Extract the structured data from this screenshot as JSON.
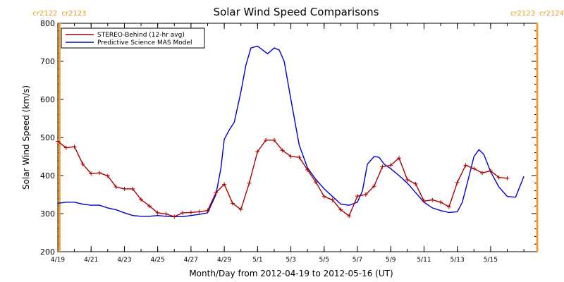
{
  "chart_data": {
    "type": "line",
    "title": "Solar Wind Speed Comparisons",
    "xlabel": "Month/Day from 2012-04-19 to 2012-05-16 (UT)",
    "ylabel": "Solar Wind Speed (km/s)",
    "x_range_days": [
      0,
      28.8
    ],
    "ylim": [
      200,
      800
    ],
    "yticks": [
      200,
      300,
      400,
      500,
      600,
      700,
      800
    ],
    "xtick_labels": [
      {
        "day": 0,
        "label": "4/19"
      },
      {
        "day": 2,
        "label": "4/21"
      },
      {
        "day": 4,
        "label": "4/23"
      },
      {
        "day": 6,
        "label": "4/25"
      },
      {
        "day": 8,
        "label": "4/27"
      },
      {
        "day": 10,
        "label": "4/29"
      },
      {
        "day": 12,
        "label": "5/1"
      },
      {
        "day": 14,
        "label": "5/3"
      },
      {
        "day": 16,
        "label": "5/5"
      },
      {
        "day": 18,
        "label": "5/7"
      },
      {
        "day": 20,
        "label": "5/9"
      },
      {
        "day": 22,
        "label": "5/11"
      },
      {
        "day": 24,
        "label": "5/13"
      },
      {
        "day": 26,
        "label": "5/15"
      }
    ],
    "rotation_markers": [
      {
        "day": 0.1,
        "left_label": "cr2122",
        "right_label": "cr2123"
      },
      {
        "day": 28.8,
        "left_label": "cr2123",
        "right_label": "cr2124"
      }
    ],
    "legend_position": "top-left",
    "series": [
      {
        "name": "STEREO-Behind (12-hr avg)",
        "color": "#aa0000",
        "marker": "plus",
        "x": [
          0.0,
          0.5,
          1.0,
          1.5,
          2.0,
          2.5,
          3.0,
          3.5,
          4.0,
          4.5,
          5.0,
          5.5,
          6.0,
          6.5,
          7.0,
          7.5,
          8.0,
          8.5,
          9.0,
          9.5,
          10.0,
          10.5,
          11.0,
          11.5,
          12.0,
          12.5,
          13.0,
          13.5,
          14.0,
          14.5,
          15.0,
          15.5,
          16.0,
          16.5,
          17.0,
          17.5,
          18.0,
          18.5,
          19.0,
          19.5,
          20.0,
          20.5,
          21.0,
          21.5,
          22.0,
          22.5,
          23.0,
          23.5,
          24.0,
          24.5,
          25.0,
          25.5,
          26.0,
          26.5,
          27.0
        ],
        "values": [
          490,
          473,
          476,
          430,
          405,
          407,
          399,
          370,
          365,
          365,
          337,
          320,
          302,
          299,
          292,
          302,
          303,
          305,
          308,
          355,
          377,
          327,
          311,
          380,
          463,
          493,
          493,
          466,
          450,
          448,
          415,
          383,
          345,
          336,
          310,
          294,
          346,
          350,
          372,
          423,
          427,
          446,
          389,
          378,
          333,
          336,
          330,
          318,
          382,
          427,
          418,
          407,
          412,
          395,
          393
        ]
      },
      {
        "name": "Predictive Science MAS Model",
        "color": "#0000cc",
        "marker": "none",
        "x": [
          0.0,
          0.5,
          1.0,
          1.5,
          2.0,
          2.5,
          3.0,
          3.5,
          4.0,
          4.5,
          5.0,
          5.5,
          6.0,
          6.5,
          7.0,
          7.5,
          8.0,
          8.5,
          9.0,
          9.5,
          9.8,
          10.0,
          10.3,
          10.6,
          11.0,
          11.3,
          11.6,
          12.0,
          12.3,
          12.6,
          13.0,
          13.3,
          13.6,
          14.0,
          14.5,
          15.0,
          15.5,
          16.0,
          16.5,
          17.0,
          17.5,
          18.0,
          18.3,
          18.6,
          19.0,
          19.3,
          19.6,
          20.0,
          20.5,
          21.0,
          21.5,
          22.0,
          22.5,
          23.0,
          23.5,
          24.0,
          24.3,
          24.6,
          25.0,
          25.3,
          25.6,
          26.0,
          26.5,
          27.0,
          27.5,
          28.0
        ],
        "values": [
          327,
          330,
          330,
          325,
          322,
          322,
          315,
          310,
          302,
          295,
          293,
          293,
          295,
          293,
          292,
          292,
          295,
          298,
          302,
          350,
          420,
          495,
          520,
          540,
          620,
          690,
          735,
          740,
          730,
          720,
          735,
          730,
          700,
          600,
          480,
          420,
          390,
          365,
          345,
          325,
          322,
          330,
          360,
          430,
          450,
          448,
          430,
          418,
          400,
          380,
          355,
          330,
          315,
          308,
          303,
          305,
          330,
          380,
          450,
          468,
          455,
          410,
          370,
          345,
          343,
          398
        ]
      }
    ]
  }
}
